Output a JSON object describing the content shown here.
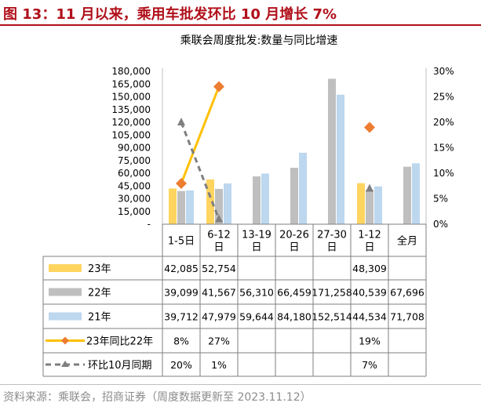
{
  "figure": {
    "title": "图 13：11 月以来，乘用车批发环比 10 月增长 7%",
    "source": "资料来源：乘联会，招商证券（周度数据更新至 2023.11.12）"
  },
  "chart_data": {
    "type": "bar",
    "title": "乘联会周度批发:数量与同比增速",
    "categories": [
      "1-5日",
      "6-12日",
      "13-19日",
      "20-26日",
      "27-30日",
      "1-12日",
      "全月"
    ],
    "category_lines": [
      [
        "1-5日"
      ],
      [
        "6-12",
        "日"
      ],
      [
        "13-19",
        "日"
      ],
      [
        "20-26",
        "日"
      ],
      [
        "27-30",
        "日"
      ],
      [
        "1-12",
        "日"
      ],
      [
        "全月"
      ]
    ],
    "ylim_left": [
      0,
      180000
    ],
    "ylim_right": [
      0,
      30
    ],
    "left_ticks": [
      "-",
      "15,000",
      "30,000",
      "45,000",
      "60,000",
      "75,000",
      "90,000",
      "105,000",
      "120,000",
      "135,000",
      "150,000",
      "165,000",
      "180,000"
    ],
    "right_ticks": [
      "0%",
      "5%",
      "10%",
      "15%",
      "20%",
      "25%",
      "30%"
    ],
    "series": [
      {
        "name": "23年",
        "kind": "bar",
        "axis": "left",
        "color": "#ffd560",
        "values": [
          42085,
          52754,
          null,
          null,
          null,
          48309,
          null
        ],
        "labels": [
          "42,085",
          "52,754",
          "",
          "",
          "",
          "48,309",
          ""
        ]
      },
      {
        "name": "22年",
        "kind": "bar",
        "axis": "left",
        "color": "#bfbfbf",
        "values": [
          39099,
          41567,
          56310,
          66459,
          171258,
          40539,
          67696
        ],
        "labels": [
          "39,099",
          "41,567",
          "56,310",
          "66,459",
          "171,258",
          "40,539",
          "67,696"
        ]
      },
      {
        "name": "21年",
        "kind": "bar",
        "axis": "left",
        "color": "#bdd7ee",
        "values": [
          39712,
          47979,
          59644,
          84180,
          152514,
          44534,
          71708
        ],
        "labels": [
          "39,712",
          "47,979",
          "59,644",
          "84,180",
          "152,514",
          "44,534",
          "71,708"
        ]
      },
      {
        "name": "23年同比22年",
        "kind": "line",
        "axis": "right",
        "color": "#ffc000",
        "marker_color": "#ed7d31",
        "values": [
          8,
          27,
          null,
          null,
          null,
          19,
          null
        ],
        "labels": [
          "8%",
          "27%",
          "",
          "",
          "",
          "19%",
          ""
        ]
      },
      {
        "name": "环比10月同期",
        "kind": "dashed-line",
        "axis": "right",
        "color": "#7f7f7f",
        "values": [
          20,
          1,
          null,
          null,
          null,
          7,
          null
        ],
        "labels": [
          "20%",
          "1%",
          "",
          "",
          "",
          "7%",
          ""
        ]
      }
    ]
  }
}
